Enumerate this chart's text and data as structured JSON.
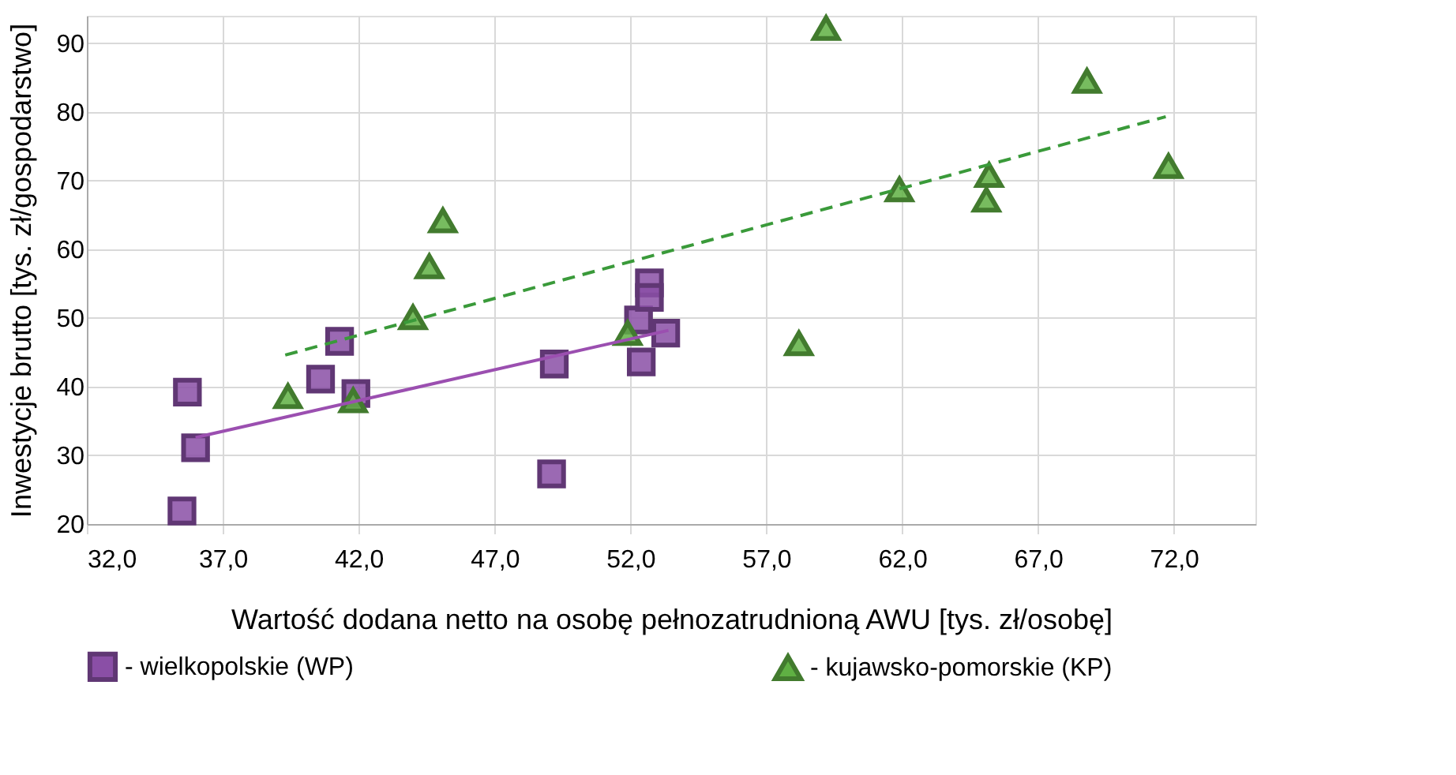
{
  "chart_data": {
    "type": "scatter",
    "xlabel": "Wartość dodana netto na osobę pełnozatrudnioną AWU [tys. zł/osobę]",
    "ylabel": "Inwestycje brutto [tys. zł/gospodarstwo]",
    "xlim": [
      32,
      75
    ],
    "ylim": [
      20,
      94
    ],
    "xticks": [
      {
        "value": 32,
        "label": "32,0"
      },
      {
        "value": 37,
        "label": "37,0"
      },
      {
        "value": 42,
        "label": "42,0"
      },
      {
        "value": 47,
        "label": "47,0"
      },
      {
        "value": 52,
        "label": "52,0"
      },
      {
        "value": 57,
        "label": "57,0"
      },
      {
        "value": 62,
        "label": "62,0"
      },
      {
        "value": 67,
        "label": "67,0"
      },
      {
        "value": 72,
        "label": "72,0"
      }
    ],
    "yticks": [
      20,
      30,
      40,
      50,
      60,
      70,
      80,
      90
    ],
    "grid": true,
    "legend": "bottom",
    "series": [
      {
        "name": "- wielkopolskie (WP)",
        "marker": "square",
        "color": "#8a4fa6",
        "x": [
          35.7,
          35.5,
          36.0,
          40.6,
          41.3,
          41.9,
          49.2,
          49.1,
          52.3,
          52.4,
          52.7,
          52.7,
          53.3
        ],
        "values": [
          39.2,
          21.9,
          31.1,
          41.1,
          46.6,
          39.0,
          43.3,
          27.3,
          49.7,
          43.6,
          55.1,
          53.0,
          47.8
        ]
      },
      {
        "name": "- kujawsko-pomorskie (KP)",
        "marker": "triangle",
        "color": "#5fb043",
        "x": [
          39.4,
          41.8,
          44.0,
          44.6,
          45.1,
          51.9,
          59.2,
          58.2,
          61.9,
          65.2,
          65.1,
          68.8,
          71.8
        ],
        "values": [
          38.6,
          38.0,
          50.1,
          57.5,
          64.2,
          47.8,
          92.2,
          46.3,
          68.7,
          70.8,
          67.2,
          84.5,
          72.1
        ]
      },
      {
        "type": "line",
        "color": "#9b4fb0",
        "line_style": "solid",
        "x": [
          36.0,
          53.4
        ],
        "values": [
          32.6,
          48.2
        ]
      },
      {
        "type": "line",
        "color": "#3a9a3a",
        "line_style": "dashed",
        "x": [
          39.3,
          71.7
        ],
        "values": [
          44.6,
          79.3
        ]
      }
    ]
  }
}
